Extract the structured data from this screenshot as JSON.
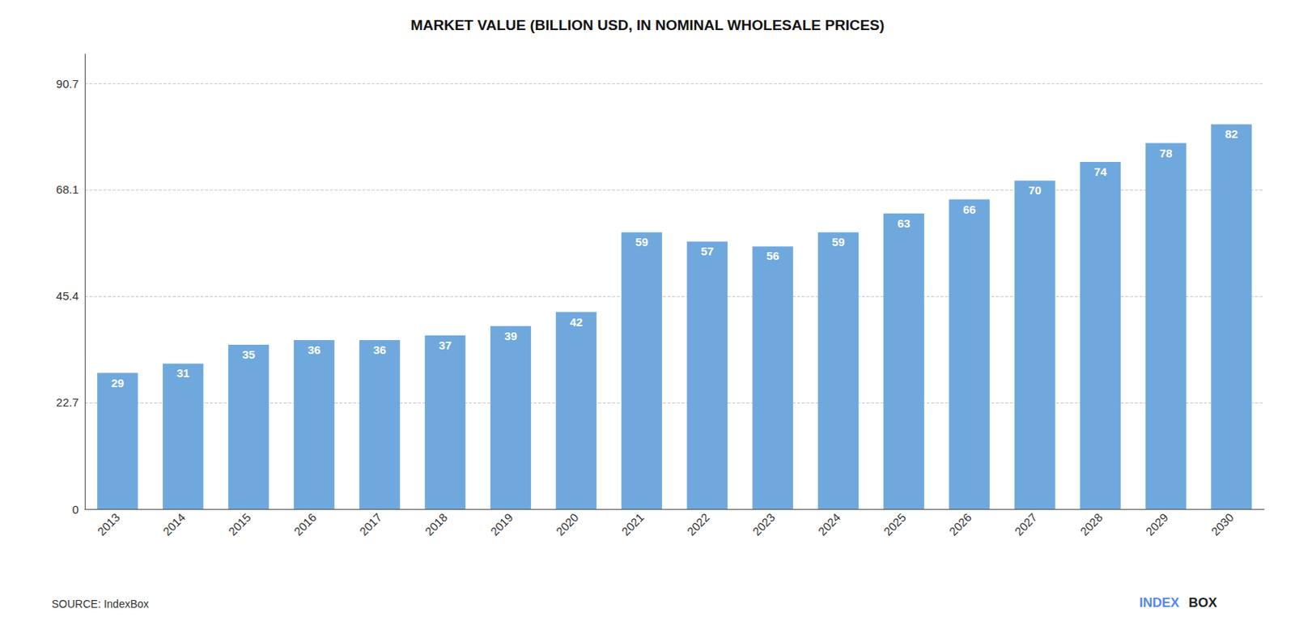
{
  "chart_data": {
    "type": "bar",
    "title": "MARKET VALUE (BILLION USD, IN NOMINAL WHOLESALE PRICES)",
    "categories": [
      "2013",
      "2014",
      "2015",
      "2016",
      "2017",
      "2018",
      "2019",
      "2020",
      "2021",
      "2022",
      "2023",
      "2024",
      "2025",
      "2026",
      "2027",
      "2028",
      "2029",
      "2030"
    ],
    "values": [
      29,
      31,
      35,
      36,
      36,
      37,
      39,
      42,
      59,
      57,
      56,
      59,
      63,
      66,
      70,
      74,
      78,
      82
    ],
    "color": "#6fa8dc",
    "ylim": [
      0,
      97
    ],
    "yticks": [
      0,
      22.7,
      45.4,
      68.1,
      90.7
    ],
    "grid": true,
    "data_labels": true,
    "annotations": [
      "SOURCE: IndexBox",
      "INDEX",
      "BOX"
    ]
  }
}
